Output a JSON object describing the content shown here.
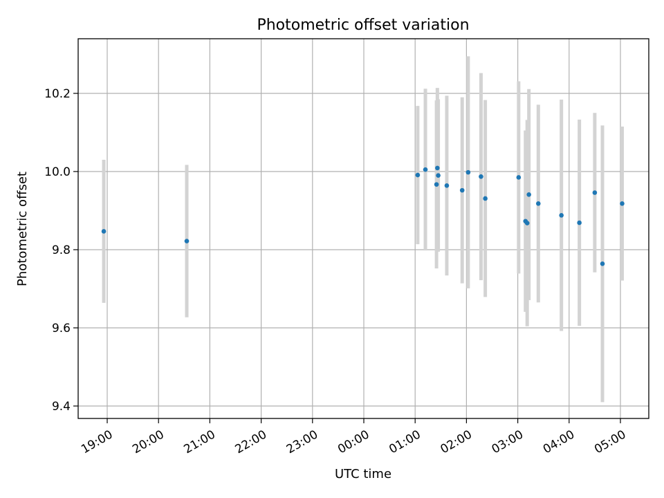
{
  "chart_data": {
    "type": "scatter",
    "title": "Photometric offset variation",
    "xlabel": "UTC time",
    "ylabel": "Photometric offset",
    "x_tick_labels": [
      "19:00",
      "20:00",
      "21:00",
      "22:00",
      "23:00",
      "00:00",
      "01:00",
      "02:00",
      "03:00",
      "04:00",
      "05:00"
    ],
    "y_tick_labels": [
      "9.4",
      "9.6",
      "9.8",
      "10.0",
      "10.2"
    ],
    "y_ticks": [
      9.4,
      9.6,
      9.8,
      10.0,
      10.2
    ],
    "ylim": [
      9.35,
      10.34
    ],
    "grid": true,
    "colors": {
      "points": "#1f77b4",
      "error_bars": "#d3d3d3",
      "grid": "#b0b0b0"
    },
    "points": [
      {
        "time": "18:56",
        "y": 9.847,
        "err": 0.183
      },
      {
        "time": "20:33",
        "y": 9.822,
        "err": 0.195
      },
      {
        "time": "01:03",
        "y": 9.991,
        "err": 0.177
      },
      {
        "time": "01:12",
        "y": 10.005,
        "err": 0.207
      },
      {
        "time": "01:25",
        "y": 9.967,
        "err": 0.215
      },
      {
        "time": "01:26",
        "y": 10.009,
        "err": 0.205
      },
      {
        "time": "01:27",
        "y": 9.99,
        "err": 0.195
      },
      {
        "time": "01:37",
        "y": 9.964,
        "err": 0.23
      },
      {
        "time": "01:55",
        "y": 9.952,
        "err": 0.238
      },
      {
        "time": "02:02",
        "y": 9.998,
        "err": 0.297
      },
      {
        "time": "02:17",
        "y": 9.987,
        "err": 0.265
      },
      {
        "time": "02:22",
        "y": 9.931,
        "err": 0.252
      },
      {
        "time": "03:01",
        "y": 9.985,
        "err": 0.246
      },
      {
        "time": "03:09",
        "y": 9.873,
        "err": 0.232
      },
      {
        "time": "03:11",
        "y": 9.868,
        "err": 0.264
      },
      {
        "time": "03:13",
        "y": 9.941,
        "err": 0.27
      },
      {
        "time": "03:24",
        "y": 9.918,
        "err": 0.253
      },
      {
        "time": "03:51",
        "y": 9.888,
        "err": 0.296
      },
      {
        "time": "04:12",
        "y": 9.869,
        "err": 0.264
      },
      {
        "time": "04:30",
        "y": 9.946,
        "err": 0.204
      },
      {
        "time": "04:39",
        "y": 9.764,
        "err": 0.354
      },
      {
        "time": "05:02",
        "y": 9.918,
        "err": 0.197
      }
    ]
  }
}
